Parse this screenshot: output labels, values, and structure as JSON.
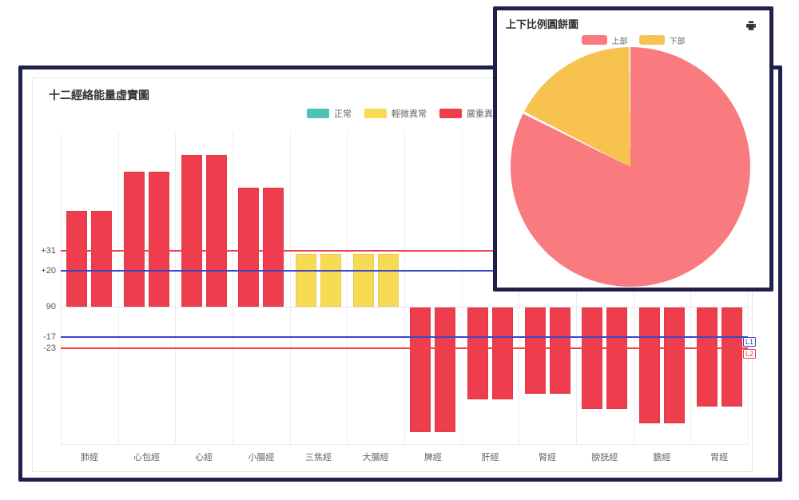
{
  "windows": {
    "main": {
      "name": "meridian-bar-chart-window"
    },
    "overlay": {
      "name": "upper-lower-pie-window",
      "print_tooltip": "print"
    }
  },
  "chart_data": [
    {
      "type": "bar",
      "title": "十二經絡能量虛實圖",
      "categories": [
        "肺經",
        "心包經",
        "心經",
        "小腸經",
        "三焦經",
        "大腸經",
        "脾經",
        "肝經",
        "腎經",
        "膀胱經",
        "膽經",
        "胃經"
      ],
      "series": [
        {
          "name": "bar-1",
          "values": [
            53,
            75,
            84,
            66,
            29,
            29,
            -69,
            -51,
            -48,
            -56,
            -64,
            -55
          ]
        },
        {
          "name": "bar-2",
          "values": [
            53,
            75,
            84,
            66,
            29,
            29,
            -69,
            -51,
            -48,
            -56,
            -64,
            -55
          ]
        }
      ],
      "severity_by_category": [
        "severe",
        "severe",
        "severe",
        "severe",
        "mild",
        "mild",
        "severe",
        "severe",
        "severe",
        "severe",
        "severe",
        "severe"
      ],
      "status_colors": {
        "normal": "#4ec2b4",
        "mild": "#f7db54",
        "severe": "#ee3d4c"
      },
      "legend": [
        {
          "label": "正常",
          "status": "normal"
        },
        {
          "label": "輕微異常",
          "status": "mild"
        },
        {
          "label": "嚴重異常",
          "status": "severe"
        }
      ],
      "legend_position": "top-center",
      "y_ticks": [
        {
          "label": "+31",
          "value": 31
        },
        {
          "label": "+20",
          "value": 20
        },
        {
          "label": "90",
          "value": 0
        },
        {
          "label": "-17",
          "value": -17
        },
        {
          "label": "-23",
          "value": -23
        }
      ],
      "threshold_lines": [
        {
          "value": 31,
          "color": "#f0414e",
          "label": ""
        },
        {
          "value": 20,
          "color": "#3b46c8",
          "label": ""
        },
        {
          "value": -17,
          "color": "#3b46c8",
          "label": "L1"
        },
        {
          "value": -23,
          "color": "#f0414e",
          "label": "L2"
        }
      ],
      "ylim": [
        -77,
        97
      ],
      "grid": true
    },
    {
      "type": "pie",
      "title": "上下比例圓餅圖",
      "slices": [
        {
          "label": "上部",
          "value": 82.5,
          "color": "#f97b80"
        },
        {
          "label": "下部",
          "value": 17.5,
          "color": "#f8c251"
        }
      ],
      "start_angle_deg": 0,
      "direction": "clockwise",
      "legend_position": "top",
      "slice_border_color": "#ffffff"
    }
  ]
}
